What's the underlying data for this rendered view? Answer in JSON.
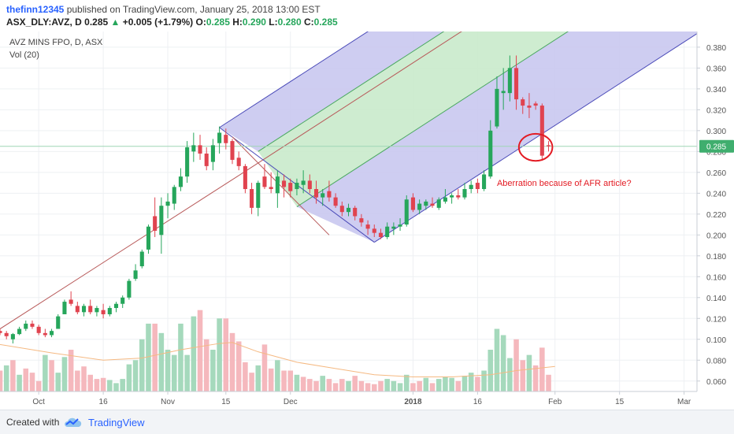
{
  "header": {
    "author": "thefinn12345",
    "published": " published on TradingView.com, January 25, 2018 13:00 EST",
    "symbol": "ASX_DLY:AVZ, D",
    "price": "0.285",
    "change": "+0.005 (+1.79%)",
    "ohlc_o_label": "O:",
    "ohlc_o": "0.285",
    "ohlc_h_label": "H:",
    "ohlc_h": "0.290",
    "ohlc_l_label": "L:",
    "ohlc_l": "0.280",
    "ohlc_c_label": "C:",
    "ohlc_c": "0.285",
    "change_icon": "triangle-up-icon"
  },
  "legend": {
    "title": "AVZ MINS FPO, D, ASX",
    "volume": "Vol (20)"
  },
  "footer": {
    "created_with": "Created with",
    "brand": "TradingView",
    "logo_icon": "tradingview-cloud-icon"
  },
  "colors": {
    "up": "#26a65b",
    "down": "#e0434f",
    "vol_up": "#a5d9bc",
    "vol_down": "#f5b8bd",
    "channel_outer": "#c9c8ef",
    "channel_inner": "#c9eacb",
    "trendline": "#b85a5a",
    "ma": "#f5b982",
    "price_tag": "#3fae6e"
  },
  "chart_data": {
    "type": "candlestick",
    "title": "AVZ MINS FPO, D, ASX",
    "ylim": [
      0.05,
      0.395
    ],
    "yticks": [
      "0.380",
      "0.360",
      "0.340",
      "0.320",
      "0.300",
      "0.280",
      "0.260",
      "0.240",
      "0.220",
      "0.200",
      "0.180",
      "0.160",
      "0.140",
      "0.120",
      "0.100",
      "0.080",
      "0.060"
    ],
    "ytick_values": [
      0.38,
      0.36,
      0.34,
      0.32,
      0.3,
      0.28,
      0.26,
      0.24,
      0.22,
      0.2,
      0.18,
      0.16,
      0.14,
      0.12,
      0.1,
      0.08,
      0.06
    ],
    "xticks": [
      {
        "label": "Oct",
        "day": 6
      },
      {
        "label": "16",
        "day": 16
      },
      {
        "label": "Nov",
        "day": 26
      },
      {
        "label": "15",
        "day": 35
      },
      {
        "label": "Dec",
        "day": 45
      },
      {
        "label": "2018",
        "day": 64
      },
      {
        "label": "16",
        "day": 74
      },
      {
        "label": "Feb",
        "day": 86
      },
      {
        "label": "15",
        "day": 96
      },
      {
        "label": "Mar",
        "day": 106
      }
    ],
    "x_range": [
      0,
      108
    ],
    "last_price": "0.285",
    "last_price_value": 0.285,
    "candles": [
      [
        0,
        0.108,
        0.11,
        0.104,
        0.106
      ],
      [
        1,
        0.106,
        0.108,
        0.1,
        0.103
      ],
      [
        2,
        0.1,
        0.106,
        0.096,
        0.105
      ],
      [
        3,
        0.105,
        0.112,
        0.104,
        0.11
      ],
      [
        4,
        0.11,
        0.118,
        0.108,
        0.115
      ],
      [
        5,
        0.115,
        0.118,
        0.11,
        0.112
      ],
      [
        6,
        0.112,
        0.114,
        0.104,
        0.106
      ],
      [
        7,
        0.106,
        0.11,
        0.102,
        0.104
      ],
      [
        8,
        0.104,
        0.11,
        0.102,
        0.108
      ],
      [
        9,
        0.11,
        0.124,
        0.11,
        0.122
      ],
      [
        10,
        0.124,
        0.138,
        0.124,
        0.136
      ],
      [
        11,
        0.138,
        0.146,
        0.132,
        0.134
      ],
      [
        12,
        0.132,
        0.136,
        0.124,
        0.126
      ],
      [
        13,
        0.126,
        0.134,
        0.122,
        0.132
      ],
      [
        14,
        0.132,
        0.138,
        0.124,
        0.126
      ],
      [
        15,
        0.126,
        0.132,
        0.122,
        0.13
      ],
      [
        16,
        0.128,
        0.134,
        0.12,
        0.124
      ],
      [
        17,
        0.124,
        0.132,
        0.122,
        0.13
      ],
      [
        18,
        0.13,
        0.136,
        0.126,
        0.134
      ],
      [
        19,
        0.134,
        0.142,
        0.13,
        0.14
      ],
      [
        20,
        0.14,
        0.158,
        0.138,
        0.156
      ],
      [
        21,
        0.158,
        0.172,
        0.156,
        0.166
      ],
      [
        22,
        0.17,
        0.186,
        0.168,
        0.184
      ],
      [
        23,
        0.186,
        0.21,
        0.182,
        0.208
      ],
      [
        24,
        0.218,
        0.236,
        0.198,
        0.204
      ],
      [
        25,
        0.2,
        0.236,
        0.182,
        0.228
      ],
      [
        26,
        0.228,
        0.24,
        0.216,
        0.232
      ],
      [
        27,
        0.23,
        0.248,
        0.224,
        0.246
      ],
      [
        28,
        0.246,
        0.264,
        0.242,
        0.256
      ],
      [
        29,
        0.256,
        0.29,
        0.25,
        0.284
      ],
      [
        30,
        0.28,
        0.298,
        0.27,
        0.286
      ],
      [
        31,
        0.286,
        0.296,
        0.272,
        0.278
      ],
      [
        32,
        0.278,
        0.284,
        0.262,
        0.266
      ],
      [
        33,
        0.27,
        0.292,
        0.262,
        0.286
      ],
      [
        34,
        0.288,
        0.304,
        0.278,
        0.298
      ],
      [
        35,
        0.296,
        0.302,
        0.282,
        0.288
      ],
      [
        36,
        0.29,
        0.292,
        0.268,
        0.272
      ],
      [
        37,
        0.274,
        0.28,
        0.262,
        0.266
      ],
      [
        38,
        0.266,
        0.268,
        0.24,
        0.244
      ],
      [
        39,
        0.244,
        0.25,
        0.22,
        0.226
      ],
      [
        40,
        0.226,
        0.252,
        0.218,
        0.25
      ],
      [
        41,
        0.256,
        0.268,
        0.244,
        0.246
      ],
      [
        42,
        0.246,
        0.26,
        0.24,
        0.244
      ],
      [
        43,
        0.24,
        0.262,
        0.226,
        0.256
      ],
      [
        44,
        0.252,
        0.258,
        0.236,
        0.246
      ],
      [
        45,
        0.25,
        0.254,
        0.236,
        0.242
      ],
      [
        46,
        0.244,
        0.254,
        0.238,
        0.25
      ],
      [
        47,
        0.248,
        0.262,
        0.24,
        0.252
      ],
      [
        48,
        0.252,
        0.258,
        0.24,
        0.244
      ],
      [
        49,
        0.244,
        0.252,
        0.23,
        0.236
      ],
      [
        50,
        0.236,
        0.244,
        0.228,
        0.24
      ],
      [
        51,
        0.242,
        0.252,
        0.232,
        0.236
      ],
      [
        52,
        0.236,
        0.24,
        0.226,
        0.228
      ],
      [
        53,
        0.228,
        0.232,
        0.218,
        0.222
      ],
      [
        54,
        0.222,
        0.23,
        0.218,
        0.226
      ],
      [
        55,
        0.226,
        0.228,
        0.214,
        0.218
      ],
      [
        56,
        0.216,
        0.22,
        0.208,
        0.212
      ],
      [
        57,
        0.21,
        0.214,
        0.2,
        0.206
      ],
      [
        58,
        0.206,
        0.21,
        0.198,
        0.202
      ],
      [
        59,
        0.202,
        0.206,
        0.196,
        0.198
      ],
      [
        60,
        0.198,
        0.212,
        0.196,
        0.208
      ],
      [
        61,
        0.206,
        0.212,
        0.2,
        0.208
      ],
      [
        62,
        0.208,
        0.216,
        0.204,
        0.21
      ],
      [
        63,
        0.21,
        0.238,
        0.208,
        0.234
      ],
      [
        64,
        0.236,
        0.24,
        0.222,
        0.224
      ],
      [
        65,
        0.224,
        0.234,
        0.22,
        0.23
      ],
      [
        66,
        0.228,
        0.234,
        0.224,
        0.232
      ],
      [
        67,
        0.23,
        0.236,
        0.226,
        0.228
      ],
      [
        68,
        0.226,
        0.236,
        0.224,
        0.234
      ],
      [
        69,
        0.232,
        0.244,
        0.23,
        0.236
      ],
      [
        70,
        0.236,
        0.24,
        0.23,
        0.238
      ],
      [
        71,
        0.238,
        0.244,
        0.234,
        0.236
      ],
      [
        72,
        0.236,
        0.25,
        0.234,
        0.244
      ],
      [
        73,
        0.244,
        0.252,
        0.24,
        0.248
      ],
      [
        74,
        0.25,
        0.254,
        0.24,
        0.244
      ],
      [
        75,
        0.244,
        0.262,
        0.242,
        0.258
      ],
      [
        76,
        0.256,
        0.31,
        0.254,
        0.3
      ],
      [
        77,
        0.304,
        0.352,
        0.302,
        0.34
      ],
      [
        78,
        0.336,
        0.36,
        0.32,
        0.338
      ],
      [
        79,
        0.336,
        0.372,
        0.328,
        0.36
      ],
      [
        80,
        0.36,
        0.372,
        0.32,
        0.33
      ],
      [
        81,
        0.33,
        0.332,
        0.316,
        0.324
      ],
      [
        82,
        0.324,
        0.336,
        0.312,
        0.322
      ],
      [
        83,
        0.326,
        0.328,
        0.32,
        0.324
      ],
      [
        84,
        0.324,
        0.326,
        0.272,
        0.276
      ],
      [
        85,
        0.286,
        0.29,
        0.28,
        0.285
      ]
    ],
    "volumes": [
      [
        0,
        0.07,
        "down"
      ],
      [
        1,
        0.075,
        "up"
      ],
      [
        2,
        0.08,
        "down"
      ],
      [
        3,
        0.066,
        "up"
      ],
      [
        4,
        0.072,
        "down"
      ],
      [
        5,
        0.068,
        "down"
      ],
      [
        6,
        0.06,
        "down"
      ],
      [
        7,
        0.085,
        "up"
      ],
      [
        8,
        0.08,
        "down"
      ],
      [
        9,
        0.068,
        "up"
      ],
      [
        10,
        0.083,
        "up"
      ],
      [
        11,
        0.09,
        "down"
      ],
      [
        12,
        0.07,
        "down"
      ],
      [
        13,
        0.074,
        "down"
      ],
      [
        14,
        0.066,
        "down"
      ],
      [
        15,
        0.062,
        "down"
      ],
      [
        16,
        0.063,
        "down"
      ],
      [
        17,
        0.061,
        "up"
      ],
      [
        18,
        0.058,
        "up"
      ],
      [
        19,
        0.062,
        "up"
      ],
      [
        20,
        0.076,
        "up"
      ],
      [
        21,
        0.08,
        "up"
      ],
      [
        22,
        0.1,
        "up"
      ],
      [
        23,
        0.115,
        "up"
      ],
      [
        24,
        0.115,
        "down"
      ],
      [
        25,
        0.106,
        "up"
      ],
      [
        26,
        0.09,
        "up"
      ],
      [
        27,
        0.085,
        "up"
      ],
      [
        28,
        0.115,
        "up"
      ],
      [
        29,
        0.085,
        "up"
      ],
      [
        30,
        0.122,
        "up"
      ],
      [
        31,
        0.128,
        "down"
      ],
      [
        32,
        0.1,
        "down"
      ],
      [
        33,
        0.09,
        "up"
      ],
      [
        34,
        0.12,
        "up"
      ],
      [
        35,
        0.12,
        "down"
      ],
      [
        36,
        0.106,
        "down"
      ],
      [
        37,
        0.098,
        "down"
      ],
      [
        38,
        0.078,
        "down"
      ],
      [
        39,
        0.068,
        "down"
      ],
      [
        40,
        0.075,
        "up"
      ],
      [
        41,
        0.095,
        "down"
      ],
      [
        42,
        0.072,
        "down"
      ],
      [
        43,
        0.08,
        "up"
      ],
      [
        44,
        0.07,
        "down"
      ],
      [
        45,
        0.07,
        "down"
      ],
      [
        46,
        0.066,
        "up"
      ],
      [
        47,
        0.064,
        "down"
      ],
      [
        48,
        0.062,
        "down"
      ],
      [
        49,
        0.06,
        "down"
      ],
      [
        50,
        0.065,
        "up"
      ],
      [
        51,
        0.062,
        "down"
      ],
      [
        52,
        0.058,
        "down"
      ],
      [
        53,
        0.062,
        "down"
      ],
      [
        54,
        0.06,
        "up"
      ],
      [
        55,
        0.065,
        "down"
      ],
      [
        56,
        0.06,
        "down"
      ],
      [
        57,
        0.058,
        "down"
      ],
      [
        58,
        0.057,
        "down"
      ],
      [
        59,
        0.06,
        "down"
      ],
      [
        60,
        0.062,
        "up"
      ],
      [
        61,
        0.06,
        "up"
      ],
      [
        62,
        0.058,
        "up"
      ],
      [
        63,
        0.066,
        "up"
      ],
      [
        64,
        0.058,
        "down"
      ],
      [
        65,
        0.06,
        "down"
      ],
      [
        66,
        0.063,
        "up"
      ],
      [
        67,
        0.058,
        "down"
      ],
      [
        68,
        0.062,
        "up"
      ],
      [
        69,
        0.064,
        "up"
      ],
      [
        70,
        0.063,
        "up"
      ],
      [
        71,
        0.06,
        "down"
      ],
      [
        72,
        0.065,
        "up"
      ],
      [
        73,
        0.068,
        "up"
      ],
      [
        74,
        0.064,
        "down"
      ],
      [
        75,
        0.07,
        "up"
      ],
      [
        76,
        0.09,
        "up"
      ],
      [
        77,
        0.11,
        "up"
      ],
      [
        78,
        0.104,
        "up"
      ],
      [
        79,
        0.082,
        "up"
      ],
      [
        80,
        0.1,
        "down"
      ],
      [
        81,
        0.08,
        "down"
      ],
      [
        82,
        0.085,
        "up"
      ],
      [
        83,
        0.075,
        "down"
      ],
      [
        84,
        0.092,
        "down"
      ],
      [
        85,
        0.066,
        "down"
      ]
    ],
    "ma_volume": [
      [
        0,
        0.095
      ],
      [
        8,
        0.087
      ],
      [
        16,
        0.08
      ],
      [
        22,
        0.082
      ],
      [
        28,
        0.09
      ],
      [
        34,
        0.096
      ],
      [
        36,
        0.097
      ],
      [
        40,
        0.088
      ],
      [
        46,
        0.078
      ],
      [
        52,
        0.072
      ],
      [
        58,
        0.066
      ],
      [
        64,
        0.064
      ],
      [
        70,
        0.064
      ],
      [
        76,
        0.066
      ],
      [
        80,
        0.07
      ],
      [
        86,
        0.074
      ]
    ],
    "trendline": [
      [
        0,
        0.11
      ],
      [
        37,
        0.257
      ]
    ],
    "trendline2": [
      [
        36,
        0.294
      ],
      [
        51,
        0.2
      ]
    ],
    "pitchfork": {
      "channel_slope": 0.004,
      "lower_bottom": [
        [
          58,
          0.193
        ],
        [
          108,
          0.36
        ]
      ],
      "lines": [
        {
          "name": "bottom",
          "start": [
            58,
            0.193
          ],
          "end_day": 108
        },
        {
          "name": "lower-mid",
          "start": [
            46,
            0.227
          ],
          "end_day": 108
        },
        {
          "name": "median",
          "start": [
            37,
            0.257
          ],
          "end_day": 108
        },
        {
          "name": "upper-mid",
          "start": [
            40,
            0.28
          ],
          "end_day": 108
        },
        {
          "name": "top",
          "start": [
            34,
            0.303
          ],
          "end_day": 108
        }
      ]
    },
    "annotation": {
      "text": "Aberration because of AFR article?",
      "day": 77,
      "value": 0.247,
      "ellipse_center": [
        83,
        0.284
      ],
      "ellipse_r": [
        2.6,
        0.013
      ]
    }
  }
}
